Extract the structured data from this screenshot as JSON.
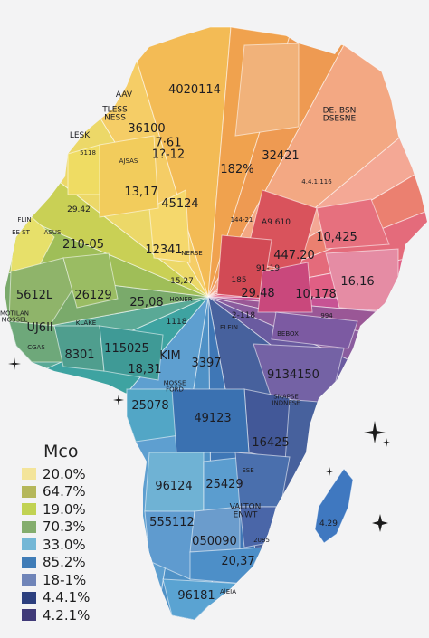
{
  "legend": {
    "title": "Mco",
    "items": [
      {
        "value": "20.0%",
        "color": "#f3e49a"
      },
      {
        "value": "64.7%",
        "color": "#b5b75a"
      },
      {
        "value": "19.0%",
        "color": "#c1d252"
      },
      {
        "value": "70.3%",
        "color": "#84ad6d"
      },
      {
        "value": "33.0%",
        "color": "#74b7d6"
      },
      {
        "value": "85.2%",
        "color": "#3f7cb7"
      },
      {
        "value": "18-1%",
        "color": "#6f84b8"
      },
      {
        "value": "4.4.1%",
        "color": "#2c3f7e"
      },
      {
        "value": "4.2.1%",
        "color": "#403a78"
      }
    ]
  },
  "labels": {
    "l1": "4020114",
    "l2": "AAV",
    "l3": "TLESS\nNESS",
    "l4": "LESK",
    "l5": "5118",
    "l6": "36100",
    "l7": "7·61\n1?-12",
    "l8": "AJSAS",
    "l9": "182%",
    "l10": "32421",
    "l11": "DE. BSN\nDSESNE",
    "l12": "13,17",
    "l13": "45124",
    "l14": "4.4.1.116",
    "l15": "FLIN",
    "l16": "29.42",
    "l17": "ASUS",
    "l18": "EE ST",
    "l19": "210-05",
    "l20": "12341",
    "l21": "144-21",
    "l22": "A9 610",
    "l23": "10,425",
    "l24": "NERSE",
    "l25": "447.20",
    "l26": "15,27",
    "l27": "91-19",
    "l28": "16,16",
    "l29": "5612L",
    "l30": "26129",
    "l31": "25,08",
    "l32": "HONER",
    "l33": "29.48",
    "l34": "10,178",
    "l35": "185",
    "l36": "2-118",
    "l37": "994",
    "l38": "MOTILAN\nMOSSEL",
    "l39": "UJ6Il",
    "l40": "1118",
    "l41": "ELEIN",
    "l42": "KLAKE",
    "l43": "BEBOX",
    "l44": "CGAS",
    "l45": "8301",
    "l46": "115025",
    "l47": "KIM",
    "l48": "3397",
    "l49": "9134150",
    "l50": "18,31",
    "l51": "25078",
    "l52": "MOSSE\nFORD",
    "l53": "49123",
    "l54": "SNAPSE\nINDNESE",
    "l55": "16425",
    "l56": "96124",
    "l57": "25429",
    "l58": "ESE",
    "l59": "VALTON\nENWT",
    "l60": "555112",
    "l61": "050090",
    "l62": "2085",
    "l63": "20,37",
    "l64": "96181",
    "l65": "AlEIA",
    "l66": "4.29"
  }
}
